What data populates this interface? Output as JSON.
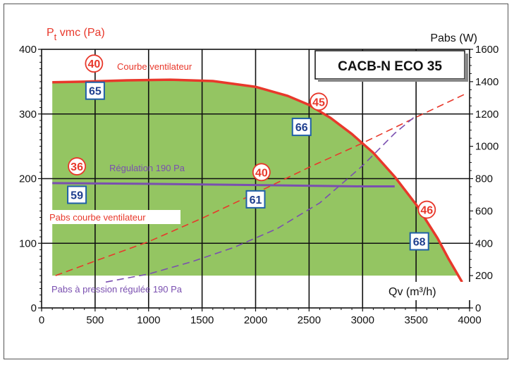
{
  "chart_data": {
    "type": "area",
    "title": "CACB-N ECO 35",
    "ylabel_left_main": "P",
    "ylabel_left_sub": "t",
    "ylabel_left_rest": " vmc (Pa)",
    "ylabel_right": "Pabs (W)",
    "xlabel": "Qv (m³/h)",
    "xlim": [
      0,
      4000
    ],
    "ylim_left": [
      0,
      400
    ],
    "ylim_right": [
      0,
      1600
    ],
    "grid": true,
    "x_ticks": [
      0,
      500,
      1000,
      1500,
      2000,
      2500,
      3000,
      3500,
      4000
    ],
    "x_tick_labels": [
      "0",
      "500",
      "1000",
      "1500",
      "2000",
      "2500",
      "3000",
      "3500",
      "4000"
    ],
    "y_left_ticks": [
      0,
      100,
      200,
      300,
      400
    ],
    "y_left_tick_labels": [
      "0",
      "100",
      "200",
      "300",
      "400"
    ],
    "y_right_ticks": [
      0,
      200,
      400,
      600,
      800,
      1000,
      1200,
      1400,
      1600
    ],
    "y_right_tick_labels": [
      "0",
      "200",
      "400",
      "600",
      "800",
      "1000",
      "1200",
      "1400",
      "1600"
    ],
    "colors": {
      "fan_curve": "#e8382b",
      "regulation": "#7a4fb0",
      "area_fill": "#94c562",
      "pabs_fan": "#e8382b",
      "pabs_regulated": "#7a4fb0",
      "badge_border": "#1f5fa8",
      "badge_text": "#1f3f8f",
      "circle": "#e8382b",
      "axis_label": "#e8382b"
    },
    "area_bottom": 50,
    "series": [
      {
        "key": "fan_curve",
        "axis": "left",
        "style": "solid",
        "x": [
          100,
          400,
          800,
          1200,
          1600,
          2000,
          2300,
          2500,
          2700,
          2900,
          3100,
          3300,
          3500,
          3700,
          3800,
          3930
        ],
        "y": [
          349,
          350,
          352,
          353,
          351,
          342,
          328,
          314,
          294,
          269,
          240,
          203,
          160,
          108,
          77,
          40
        ]
      },
      {
        "key": "regulation",
        "name": "Régulation 190 Pa",
        "axis": "left",
        "style": "solid",
        "x": [
          100,
          1000,
          2000,
          2500,
          3000,
          3300
        ],
        "y": [
          193,
          192,
          190,
          189,
          188,
          188
        ]
      },
      {
        "key": "pabs_fan",
        "name": "Pabs courbe ventilateur",
        "axis": "right",
        "style": "dashed",
        "x": [
          130,
          500,
          1000,
          1500,
          2000,
          2500,
          3000,
          3500,
          3980
        ],
        "y": [
          200,
          290,
          410,
          555,
          710,
          870,
          1020,
          1180,
          1330
        ]
      },
      {
        "key": "pabs_regulated",
        "name": "Pabs à pression régulée 190 Pa",
        "axis": "right",
        "style": "dashed",
        "x": [
          600,
          1000,
          1400,
          1800,
          2200,
          2600,
          3000,
          3300,
          3500
        ],
        "y": [
          160,
          210,
          285,
          375,
          490,
          650,
          880,
          1080,
          1190
        ]
      }
    ],
    "annotations": {
      "curve_label": "Courbe ventilateur",
      "regulation_label": "Régulation 190 Pa",
      "pabs_fan_label": "Pabs courbe ventilateur",
      "pabs_regulated_label": "Pabs à pression régulée 190 Pa",
      "circles": [
        {
          "text": "40",
          "x": 490,
          "y": 378
        },
        {
          "text": "45",
          "x": 2590,
          "y": 319
        },
        {
          "text": "36",
          "x": 330,
          "y": 219
        },
        {
          "text": "40",
          "x": 2055,
          "y": 210
        },
        {
          "text": "46",
          "x": 3600,
          "y": 152
        }
      ],
      "badges": [
        {
          "text": "65",
          "x": 500,
          "y": 336
        },
        {
          "text": "66",
          "x": 2430,
          "y": 280
        },
        {
          "text": "59",
          "x": 330,
          "y": 175
        },
        {
          "text": "61",
          "x": 2000,
          "y": 168
        },
        {
          "text": "68",
          "x": 3530,
          "y": 103
        }
      ]
    }
  }
}
